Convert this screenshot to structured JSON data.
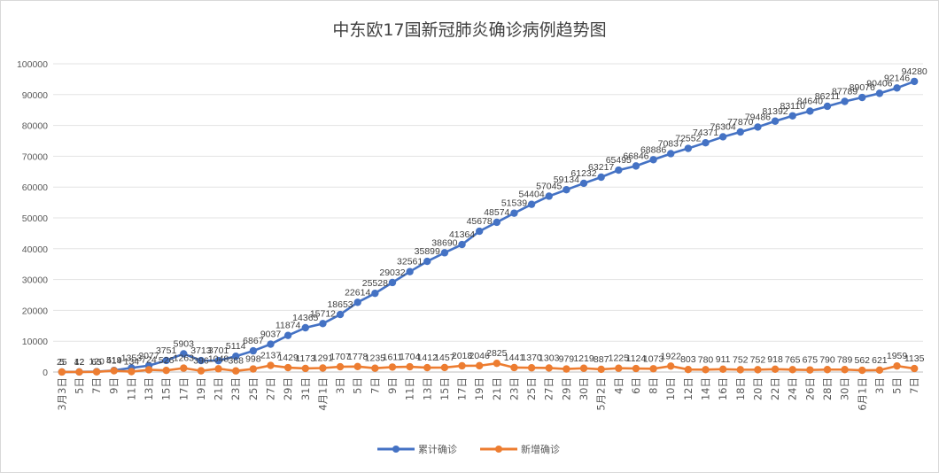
{
  "chart_data": {
    "type": "line",
    "title": "中东欧17国新冠肺炎确诊病例趋势图",
    "xlabel": "",
    "ylabel": "",
    "ylim": [
      0,
      100000
    ],
    "yticks": [
      "0",
      "10000",
      "20000",
      "30000",
      "40000",
      "50000",
      "60000",
      "70000",
      "80000",
      "90000",
      "100000"
    ],
    "grid": "horizontal",
    "legend": "bottom",
    "categories": [
      "3月3日",
      "5日",
      "7日",
      "9日",
      "11日",
      "13日",
      "15日",
      "17日",
      "19日",
      "21日",
      "23日",
      "25日",
      "27日",
      "29日",
      "31日",
      "4月1日",
      "3日",
      "5日",
      "7日",
      "9日",
      "11日",
      "13日",
      "15日",
      "17日",
      "19日",
      "21日",
      "23日",
      "25日",
      "27日",
      "29日",
      "30日",
      "5月2日",
      "4日",
      "6日",
      "8日",
      "10日",
      "12日",
      "14日",
      "16日",
      "18日",
      "20日",
      "22日",
      "24日",
      "26日",
      "28日",
      "30日",
      "6月1日",
      "3日",
      "5日",
      "7日"
    ],
    "series": [
      {
        "name": "累计确诊",
        "color": "#4472c4",
        "values": [
          25,
          42,
          120,
          519,
          1353,
          2077,
          3751,
          5903,
          3713,
          3701,
          5114,
          6867,
          9037,
          11874,
          14365,
          15712,
          18653,
          22614,
          25528,
          29032,
          32561,
          35899,
          38690,
          41364,
          45678,
          48574,
          51539,
          54404,
          57045,
          59134,
          61232,
          63217,
          65495,
          66846,
          68886,
          70837,
          72552,
          74371,
          76304,
          77870,
          79486,
          81392,
          83110,
          84640,
          86211,
          87789,
          89076,
          90406,
          92146,
          94280
        ]
      },
      {
        "name": "新增确诊",
        "color": "#ed7d31",
        "values": [
          5,
          12,
          65,
          414,
          134,
          724,
          526,
          1263,
          396,
          1048,
          368,
          998,
          2137,
          1429,
          1173,
          1291,
          1707,
          1778,
          1235,
          1611,
          1704,
          1412,
          1457,
          2018,
          2046,
          2825,
          1441,
          1370,
          1303,
          979,
          1219,
          887,
          1225,
          1124,
          1073,
          1922,
          803,
          780,
          911,
          752,
          752,
          918,
          765,
          675,
          790,
          789,
          562,
          621,
          1959,
          1135
        ]
      }
    ],
    "labels_cumulative": [
      "25",
      "42",
      "120",
      "519",
      "1353",
      "2077",
      "3751",
      "5903",
      "3713",
      "3701",
      "5114",
      "6867",
      "9037",
      "11874",
      "14365",
      "15712",
      "18653",
      "22614",
      "25528",
      "29032",
      "32561",
      "35899",
      "38690",
      "41364",
      "45678",
      "48574",
      "51539",
      "54404",
      "57045",
      "59134",
      "61232",
      "63217",
      "65495",
      "66846",
      "68886",
      "70837",
      "72552",
      "74371",
      "76304",
      "77870",
      "79486",
      "81392",
      "83110",
      "84640",
      "86211",
      "87789",
      "89076",
      "90406",
      "92146",
      "94280"
    ],
    "labels_new": [
      "5",
      "12",
      "65",
      "414",
      "134",
      "724",
      "526",
      "1263",
      "396",
      "1048",
      "368",
      "998",
      "2137",
      "1429",
      "1173",
      "1291",
      "1707",
      "1778",
      "1235",
      "1611",
      "1704",
      "1412",
      "1457",
      "2018",
      "2046",
      "2825",
      "1441",
      "1370",
      "1303",
      "979",
      "1219",
      "887",
      "1225",
      "1124",
      "1073",
      "1922",
      "803",
      "780",
      "911",
      "752",
      "752",
      "918",
      "765",
      "675",
      "790",
      "789",
      "562",
      "621",
      "1959",
      "1135"
    ]
  },
  "legend": {
    "item1": "累计确诊",
    "item2": "新增确诊"
  }
}
